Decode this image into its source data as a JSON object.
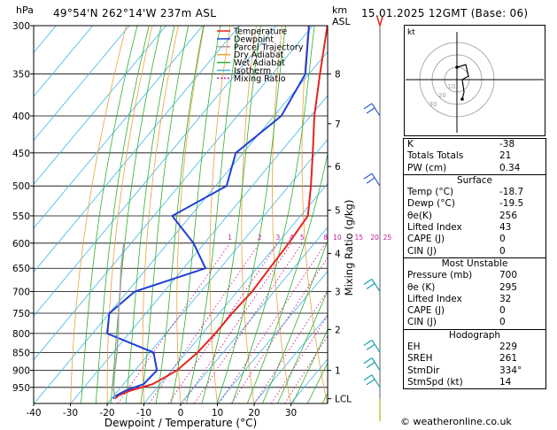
{
  "header": {
    "title": "49°54'N  262°14'W  237m  ASL",
    "datetime": "15.01.2025  12GMT  (Base: 06)",
    "p_unit": "hPa",
    "km_unit": "km",
    "asl_label": "ASL"
  },
  "legend": [
    "Temperature",
    "Dewpoint",
    "Parcel Trajectory",
    "Dry Adiabat",
    "Wet Adiabat",
    "Isotherm",
    "Mixing Ratio"
  ],
  "colors": {
    "temperature": "#e8231f",
    "dewpoint": "#1f3fdb",
    "parcel": "#a0a0a0",
    "dry_adiabat": "#e8a23b",
    "wet_adiabat": "#2fb02f",
    "isotherm": "#3fb6ea",
    "mixing_ratio": "#cc1a9a"
  },
  "chart_data": {
    "type": "skew-t",
    "xlabel": "Dewpoint / Temperature (°C)",
    "ylabel_right": "Mixing Ratio (g/kg)",
    "y_axis_label": "hPa",
    "pressure_ticks": [
      300,
      350,
      400,
      450,
      500,
      550,
      600,
      650,
      700,
      750,
      800,
      850,
      900,
      950
    ],
    "temperature_ticks": [
      -40,
      -30,
      -20,
      -10,
      0,
      10,
      20,
      30
    ],
    "xlim": [
      -40,
      40
    ],
    "ylim": [
      1000,
      300
    ],
    "km_ticks": [
      {
        "label": "8",
        "p": 350
      },
      {
        "label": "7",
        "p": 410
      },
      {
        "label": "6",
        "p": 470
      },
      {
        "label": "5",
        "p": 540
      },
      {
        "label": "4",
        "p": 620
      },
      {
        "label": "3",
        "p": 700
      },
      {
        "label": "2",
        "p": 790
      },
      {
        "label": "1",
        "p": 900
      },
      {
        "label": "LCL",
        "p": 985
      }
    ],
    "mixing_ratio_labels": [
      "1",
      "2",
      "3",
      "4",
      "5",
      "8",
      "10",
      "15",
      "20",
      "25"
    ],
    "series": [
      {
        "name": "Temperature",
        "points": [
          [
            985,
            -19
          ],
          [
            975,
            -18.8
          ],
          [
            960,
            -16.6
          ],
          [
            940,
            -12
          ],
          [
            900,
            -8.5
          ],
          [
            850,
            -7
          ],
          [
            800,
            -6.5
          ],
          [
            750,
            -6.5
          ],
          [
            700,
            -6
          ],
          [
            650,
            -6.5
          ],
          [
            600,
            -7
          ],
          [
            550,
            -8
          ],
          [
            500,
            -14
          ],
          [
            450,
            -21
          ],
          [
            400,
            -29
          ],
          [
            350,
            -37
          ],
          [
            300,
            -46
          ]
        ]
      },
      {
        "name": "Dewpoint",
        "points": [
          [
            985,
            -19.5
          ],
          [
            975,
            -19.3
          ],
          [
            960,
            -18
          ],
          [
            940,
            -14.5
          ],
          [
            900,
            -14
          ],
          [
            850,
            -19
          ],
          [
            800,
            -36
          ],
          [
            750,
            -40
          ],
          [
            700,
            -38
          ],
          [
            650,
            -24
          ],
          [
            600,
            -33
          ],
          [
            550,
            -45
          ],
          [
            500,
            -37
          ],
          [
            450,
            -42
          ],
          [
            400,
            -38
          ],
          [
            350,
            -41
          ],
          [
            300,
            -51
          ]
        ]
      },
      {
        "name": "Parcel Trajectory",
        "points": [
          [
            985,
            -19
          ],
          [
            950,
            -22
          ],
          [
            900,
            -25.5
          ],
          [
            850,
            -29
          ],
          [
            800,
            -33
          ],
          [
            750,
            -37.5
          ],
          [
            700,
            -42
          ],
          [
            650,
            -47
          ],
          [
            600,
            -52
          ]
        ]
      }
    ],
    "wind_barbs": [
      {
        "p": 400
      },
      {
        "p": 500
      },
      {
        "p": 700
      },
      {
        "p": 850
      },
      {
        "p": 900
      },
      {
        "p": 950
      }
    ]
  },
  "hodograph": {
    "label": "kt",
    "ring_labels": [
      "10",
      "20",
      "30"
    ]
  },
  "indices": {
    "k": {
      "label": "K",
      "value": "-38"
    },
    "tt": {
      "label": "Totals Totals",
      "value": "21"
    },
    "pw": {
      "label": "PW (cm)",
      "value": "0.34"
    }
  },
  "surface": {
    "title": "Surface",
    "rows": [
      {
        "label": "Temp (°C)",
        "value": "-18.7"
      },
      {
        "label": "Dewp (°C)",
        "value": "-19.5"
      },
      {
        "label": "θe(K)",
        "value": "256"
      },
      {
        "label": "Lifted Index",
        "value": "43"
      },
      {
        "label": "CAPE (J)",
        "value": "0"
      },
      {
        "label": "CIN (J)",
        "value": "0"
      }
    ]
  },
  "unstable": {
    "title": "Most Unstable",
    "rows": [
      {
        "label": "Pressure (mb)",
        "value": "700"
      },
      {
        "label": "θe (K)",
        "value": "295"
      },
      {
        "label": "Lifted Index",
        "value": "32"
      },
      {
        "label": "CAPE (J)",
        "value": "0"
      },
      {
        "label": "CIN (J)",
        "value": "0"
      }
    ]
  },
  "hodo_table": {
    "title": "Hodograph",
    "rows": [
      {
        "label": "EH",
        "value": "229"
      },
      {
        "label": "SREH",
        "value": "261"
      },
      {
        "label": "StmDir",
        "value": "334°"
      },
      {
        "label": "StmSpd (kt)",
        "value": "14"
      }
    ]
  },
  "credit": "© weatheronline.co.uk"
}
